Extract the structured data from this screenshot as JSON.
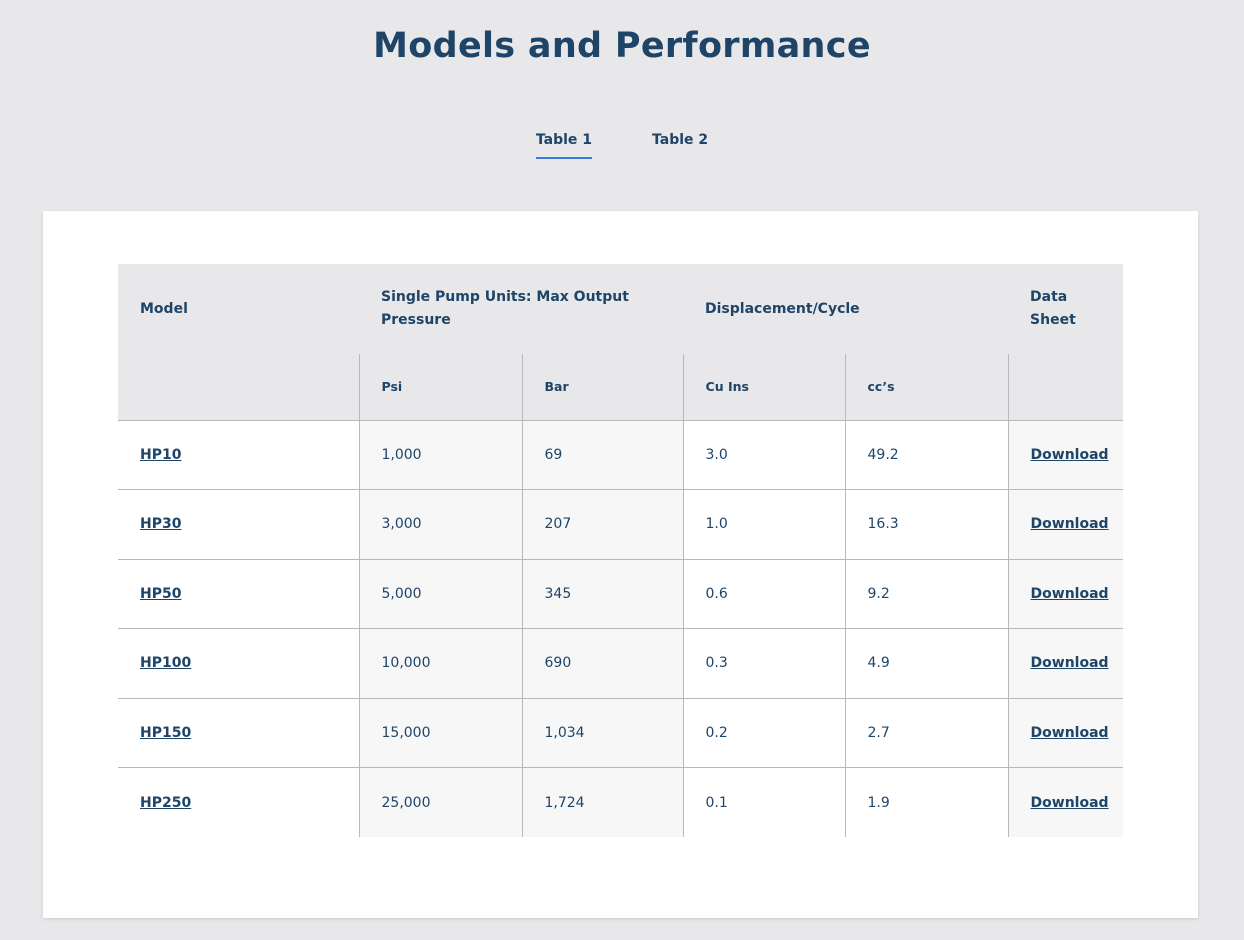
{
  "page": {
    "title": "Models and Performance"
  },
  "tabs": [
    {
      "label": "Table 1",
      "active": true
    },
    {
      "label": "Table 2",
      "active": false
    }
  ],
  "table": {
    "headers": {
      "model": "Model",
      "pressure": "Single Pump Units: Max Output Pressure",
      "displacement": "Displacement/Cycle",
      "datasheet": "Data Sheet"
    },
    "subheaders": {
      "psi": "Psi",
      "bar": "Bar",
      "cu_ins": "Cu Ins",
      "ccs": "cc’s"
    },
    "rows": [
      {
        "model": "HP10",
        "psi": "1,000",
        "bar": "69",
        "cu_ins": "3.0",
        "ccs": "49.2",
        "download": "Download"
      },
      {
        "model": "HP30",
        "psi": "3,000",
        "bar": "207",
        "cu_ins": "1.0",
        "ccs": "16.3",
        "download": "Download"
      },
      {
        "model": "HP50",
        "psi": "5,000",
        "bar": "345",
        "cu_ins": "0.6",
        "ccs": "9.2",
        "download": "Download"
      },
      {
        "model": "HP100",
        "psi": "10,000",
        "bar": "690",
        "cu_ins": "0.3",
        "ccs": "4.9",
        "download": "Download"
      },
      {
        "model": "HP150",
        "psi": "15,000",
        "bar": "1,034",
        "cu_ins": "0.2",
        "ccs": "2.7",
        "download": "Download"
      },
      {
        "model": "HP250",
        "psi": "25,000",
        "bar": "1,724",
        "cu_ins": "0.1",
        "ccs": "1.9",
        "download": "Download"
      }
    ]
  },
  "colors": {
    "text": "#1e4468",
    "accent": "#3a7bd5",
    "background": "#e8e8ea",
    "card": "#ffffff"
  }
}
